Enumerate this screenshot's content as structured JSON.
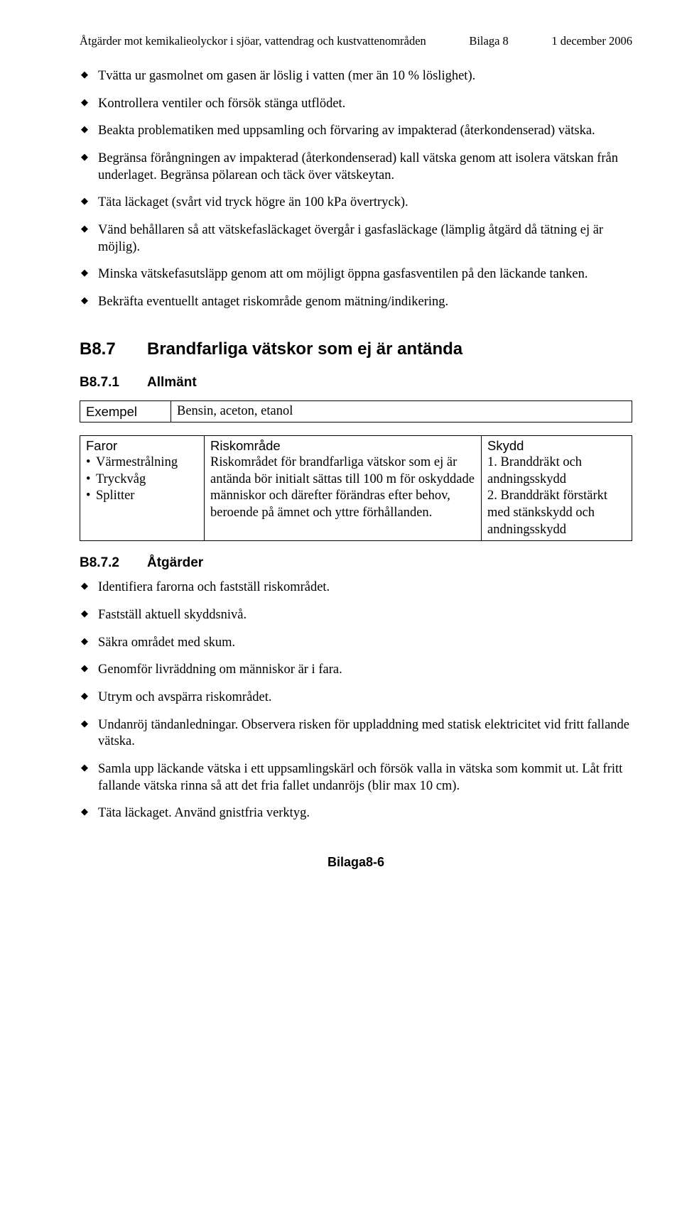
{
  "header": {
    "left": "Åtgärder mot kemikalieolyckor i sjöar, vattendrag och kustvattenområden",
    "mid": "Bilaga 8",
    "right": "1 december 2006"
  },
  "topBullets": [
    "Tvätta ur gasmolnet om gasen är löslig i vatten (mer än 10 % löslighet).",
    "Kontrollera ventiler och försök stänga utflödet.",
    "Beakta problematiken med uppsamling och förvaring av impakterad (återkondenserad) vätska.",
    "Begränsa förångningen av impakterad (återkondenserad) kall vätska genom att isolera vätskan från underlaget. Begränsa pölarean och täck över vätskeytan.",
    "Täta läckaget (svårt vid tryck högre än 100 kPa övertryck).",
    "Vänd behållaren så att vätskefasläckaget övergår i gasfasläckage (lämplig åtgärd då tätning ej är möjlig).",
    "Minska vätskefasutsläpp genom att om möjligt öppna gasfasventilen på den läckande tanken.",
    "Bekräfta eventuellt antaget riskområde genom mätning/indikering."
  ],
  "sectionMain": {
    "num": "B8.7",
    "title": "Brandfarliga vätskor som ej är antända"
  },
  "sectionSub1": {
    "num": "B8.7.1",
    "title": "Allmänt"
  },
  "exempel": {
    "label": "Exempel",
    "value": "Bensin, aceton, etanol"
  },
  "farorTable": {
    "headers": {
      "c1": "Faror",
      "c2": "Riskområde",
      "c3": "Skydd"
    },
    "c1Items": [
      "Värmestrålning",
      "Tryckvåg",
      "Splitter"
    ],
    "c2": "Riskområdet för brandfarliga vätskor som ej är antända bör initialt sättas till 100 m för oskyddade människor och därefter förändras efter behov, beroende på ämnet och yttre förhållanden.",
    "c3": "1. Branddräkt och andningsskydd\n2. Branddräkt förstärkt med stänkskydd och andningsskydd"
  },
  "sectionSub2": {
    "num": "B8.7.2",
    "title": "Åtgärder"
  },
  "actionBullets": [
    "Identifiera farorna och fastställ riskområdet.",
    "Fastställ aktuell skyddsnivå.",
    "Säkra området med skum.",
    "Genomför livräddning om människor är i fara.",
    "Utrym och avspärra riskområdet.",
    "Undanröj tändanledningar. Observera risken för uppladdning med statisk elektricitet vid fritt fallande vätska.",
    "Samla upp läckande vätska i ett uppsamlingskärl och försök valla in vätska som kommit ut. Låt fritt fallande vätska rinna så att det fria fallet undanröjs (blir max 10 cm).",
    "Täta läckaget. Använd gnistfria verktyg."
  ],
  "footer": "Bilaga8-6"
}
